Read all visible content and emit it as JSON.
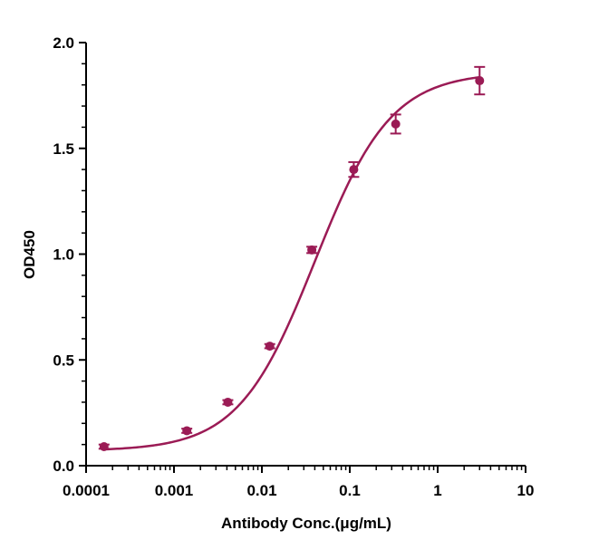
{
  "chart_data": {
    "type": "scatter",
    "xlabel": "Antibody Conc.(μg/mL)",
    "ylabel": "OD450",
    "xscale": "log",
    "xlim": [
      0.0001,
      10
    ],
    "ylim": [
      0,
      2.0
    ],
    "x_ticks": [
      "0.0001",
      "0.001",
      "0.01",
      "0.1",
      "1",
      "10"
    ],
    "y_ticks": [
      "0.0",
      "0.5",
      "1.0",
      "1.5",
      "2.0"
    ],
    "grid": false,
    "legend": "none",
    "color": "#9b1b55",
    "series": [
      {
        "x": [
          0.00016,
          0.0014,
          0.0041,
          0.0123,
          0.037,
          0.111,
          0.333,
          3.0
        ],
        "y": [
          0.09,
          0.165,
          0.3,
          0.565,
          1.02,
          1.4,
          1.615,
          1.82
        ],
        "error": [
          0.01,
          0.01,
          0.01,
          0.01,
          0.015,
          0.035,
          0.045,
          0.065
        ]
      }
    ],
    "fit_curve": {
      "type": "4PL",
      "bottom": 0.07,
      "top": 1.86,
      "ec50": 0.04,
      "hill": 1.0
    }
  }
}
